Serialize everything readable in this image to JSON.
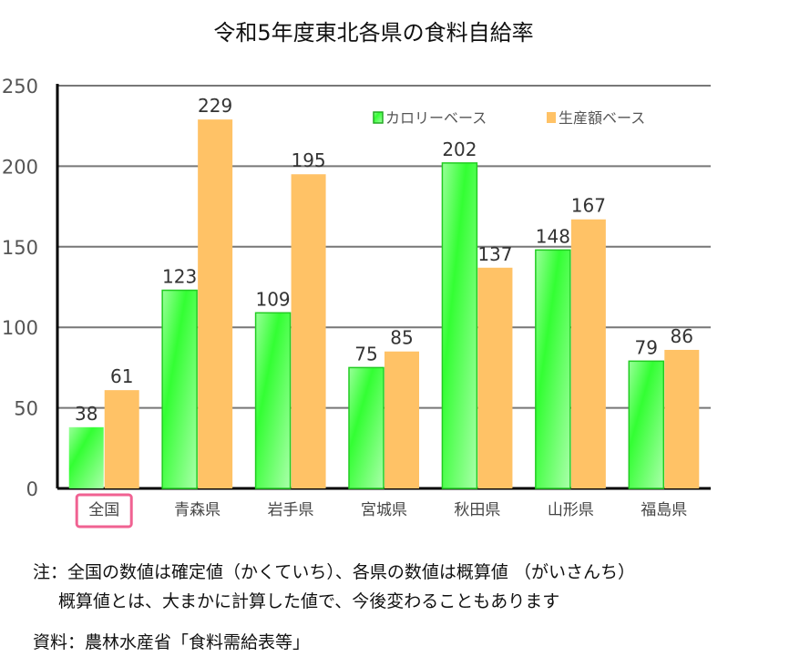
{
  "chart_data": {
    "type": "bar",
    "title": "令和5年度東北各県の食料自給率",
    "categories": [
      "全国",
      "青森県",
      "岩手県",
      "宮城県",
      "秋田県",
      "山形県",
      "福島県"
    ],
    "highlighted_category": "全国",
    "series": [
      {
        "name": "カロリーベース",
        "values": [
          38,
          123,
          109,
          75,
          202,
          148,
          79
        ],
        "color": "#33ff33"
      },
      {
        "name": "生産額ベース",
        "values": [
          61,
          229,
          195,
          85,
          137,
          167,
          86
        ],
        "color": "#ffc266"
      }
    ],
    "ylim": [
      0,
      250
    ],
    "yticks": [
      0,
      50,
      100,
      150,
      200,
      250
    ],
    "grid": true,
    "legend": "top-right",
    "highlight_color": "#f06292"
  },
  "notes": {
    "line1": "注：全国の数値は確定値（かくていち）、各県の数値は概算値 （がいさんち）",
    "line2": "概算値とは、大まかに計算した値で、今後変わることもあります",
    "source": "資料：農林水産省「食料需給表等」"
  }
}
